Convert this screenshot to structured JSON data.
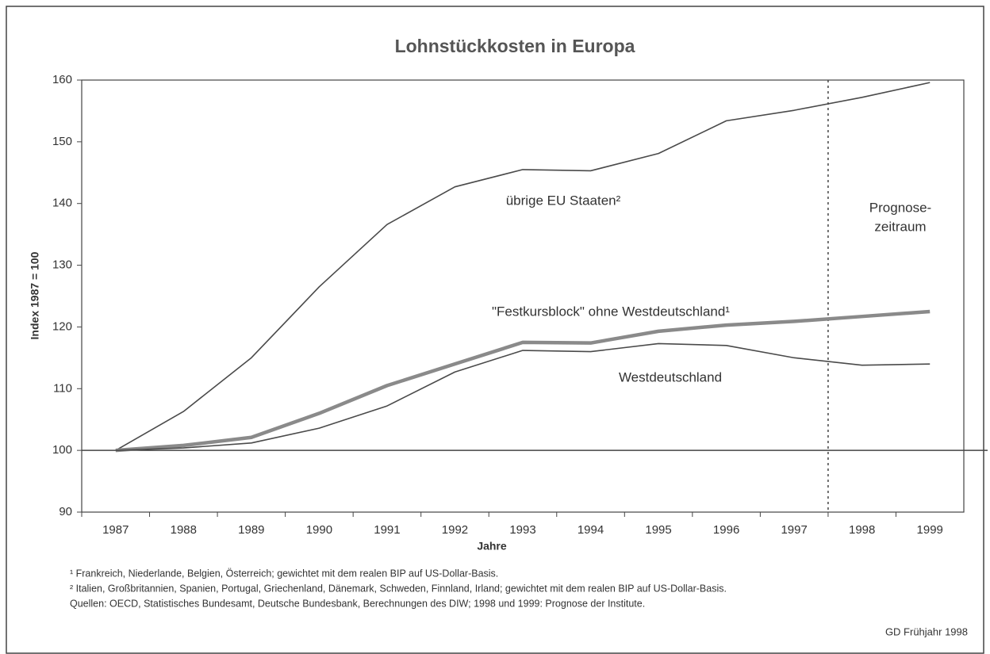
{
  "chart_data": {
    "type": "line",
    "title": "Lohnstückkosten in Europa",
    "y_label": "Index 1987 = 100",
    "x_label": "Jahre",
    "categories": [
      "1987",
      "1988",
      "1989",
      "1990",
      "1991",
      "1992",
      "1993",
      "1994",
      "1995",
      "1996",
      "1997",
      "1998",
      "1999"
    ],
    "series": [
      {
        "name": "übrige EU Staaten²",
        "color": "#4a4a4a",
        "values": [
          100,
          106.3,
          115,
          126.5,
          136.6,
          142.7,
          145.5,
          145.3,
          148.1,
          153.4,
          155.1,
          157.2,
          159.6
        ]
      },
      {
        "name": "\"Festkursblock\" ohne Westdeutschland¹",
        "color": "#8a8a8a",
        "values": [
          100,
          100.8,
          102.1,
          106,
          110.5,
          114,
          117.5,
          117.4,
          119.3,
          120.3,
          120.9,
          121.7,
          122.5
        ]
      },
      {
        "name": "Westdeutschland",
        "color": "#4a4a4a",
        "values": [
          100,
          100.4,
          101.2,
          103.6,
          107.2,
          112.7,
          116.2,
          116,
          117.3,
          117,
          115,
          113.8,
          114
        ]
      }
    ],
    "ylim": [
      90,
      160
    ],
    "yticks": [
      90,
      100,
      110,
      120,
      130,
      140,
      150,
      160
    ],
    "reference_line": 100,
    "forecast": {
      "from_category": "1998",
      "lines": [
        "Prognose-",
        "zeitraum"
      ]
    },
    "footnotes": [
      "¹ Frankreich, Niederlande, Belgien, Österreich; gewichtet mit dem realen BIP auf US-Dollar-Basis.",
      "² Italien, Großbritannien, Spanien, Portugal, Griechenland, Dänemark, Schweden, Finnland, Irland; gewichtet mit dem realen BIP auf US-Dollar-Basis.",
      "Quellen: OECD, Statistisches Bundesamt, Deutsche Bundesbank, Berechnungen des DIW; 1998 und 1999: Prognose der Institute."
    ],
    "credit": "GD Frühjahr 1998"
  }
}
